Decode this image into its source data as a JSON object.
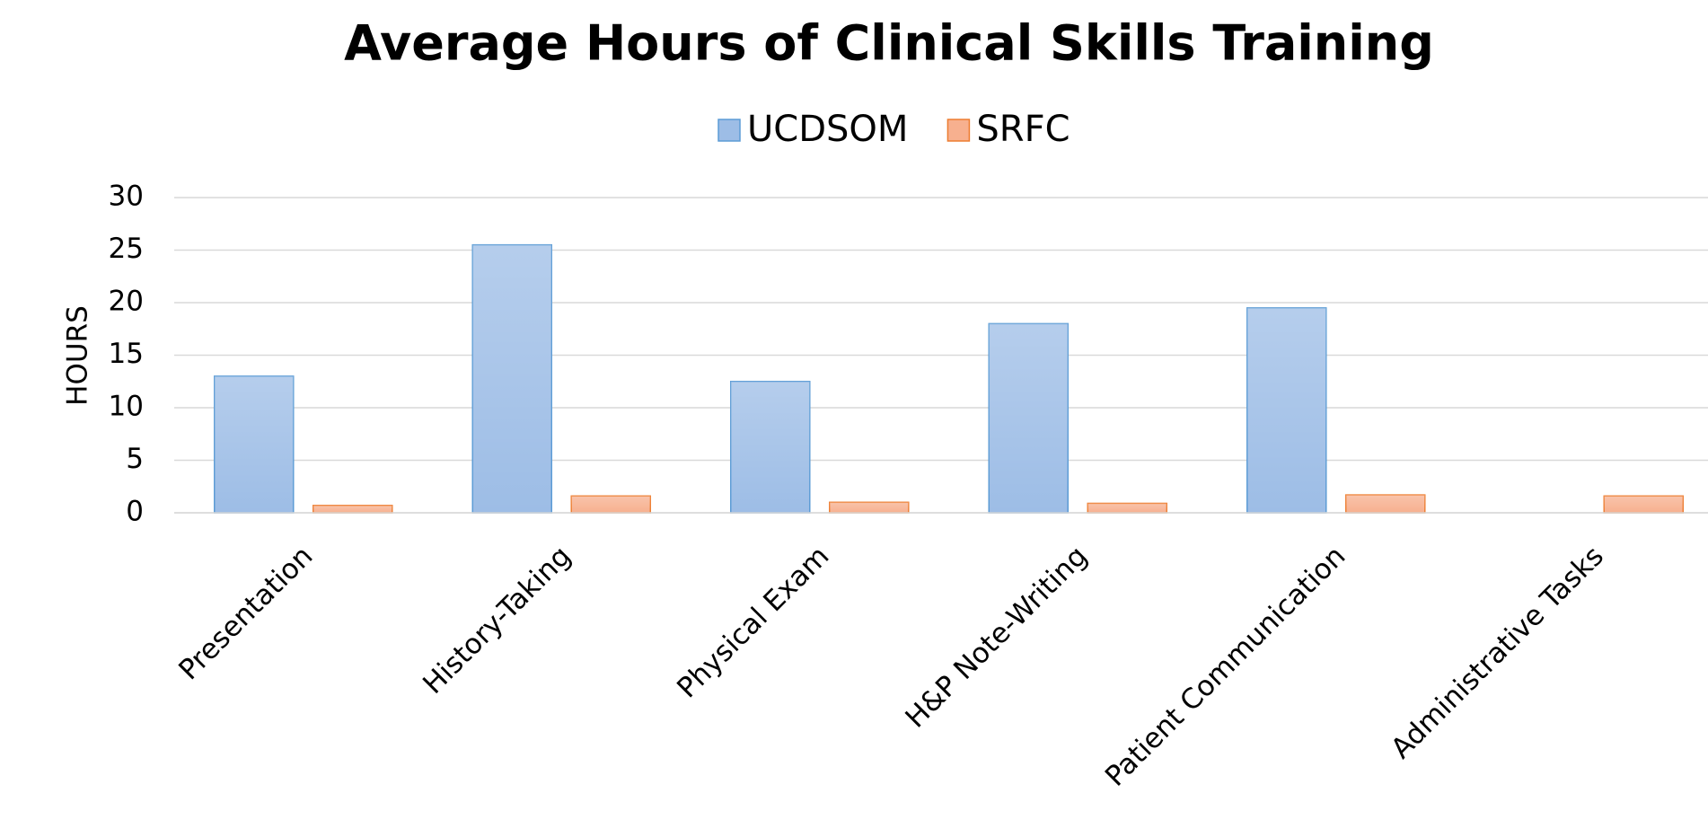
{
  "chart_data": {
    "type": "bar",
    "title": "Average Hours of Clinical Skills Training",
    "y_label": "HOURS",
    "categories": [
      "Presentation",
      "History-Taking",
      "Physical Exam",
      "H&P Note-Writing",
      "Patient Communication",
      "Administrative Tasks"
    ],
    "series": [
      {
        "name": "UCDSOM",
        "color": "#9dbde6",
        "edge": "#5b9bd5",
        "values": [
          13,
          25.5,
          12.5,
          18,
          19.5,
          0
        ]
      },
      {
        "name": "SRFC",
        "color": "#f7b08f",
        "edge": "#ed7d31",
        "values": [
          0.7,
          1.6,
          1.0,
          0.9,
          1.7,
          1.6
        ]
      }
    ],
    "ylim": [
      0,
      30
    ],
    "yticks": [
      0,
      5,
      10,
      15,
      20,
      25,
      30
    ],
    "grid": true,
    "legend": "top"
  }
}
